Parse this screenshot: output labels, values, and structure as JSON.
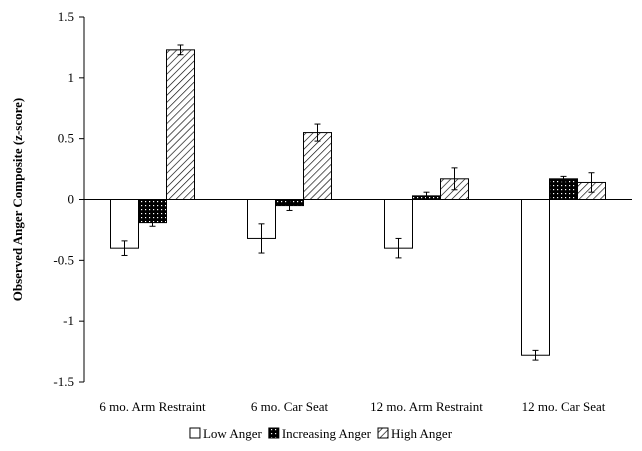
{
  "chart_data": {
    "type": "bar",
    "ylabel": "Observed Anger Composite (z-score)",
    "xlabel": "",
    "ylim": [
      -1.5,
      1.5
    ],
    "yticks": [
      1.5,
      1,
      0.5,
      0,
      -0.5,
      -1,
      -1.5
    ],
    "ytick_labels": [
      "1.5",
      "1",
      "0.5",
      "0",
      "-0.5",
      "-1",
      "-1.5"
    ],
    "categories": [
      "6 mo. Arm Restraint",
      "6 mo. Car Seat",
      "12 mo. Arm Restraint",
      "12 mo. Car Seat"
    ],
    "legend_position": "bottom",
    "grid": false,
    "series": [
      {
        "name": "Low Anger",
        "pattern": "white",
        "values": [
          -0.4,
          -0.32,
          -0.4,
          -1.28
        ],
        "errors": [
          0.06,
          0.12,
          0.08,
          0.04
        ]
      },
      {
        "name": "Increasing Anger",
        "pattern": "dotted-black",
        "values": [
          -0.19,
          -0.05,
          0.03,
          0.17
        ],
        "errors": [
          0.03,
          0.04,
          0.03,
          0.02
        ]
      },
      {
        "name": "High Anger",
        "pattern": "diagonal-hatch",
        "values": [
          1.23,
          0.55,
          0.17,
          0.14
        ],
        "errors": [
          0.04,
          0.07,
          0.09,
          0.08
        ]
      }
    ]
  }
}
